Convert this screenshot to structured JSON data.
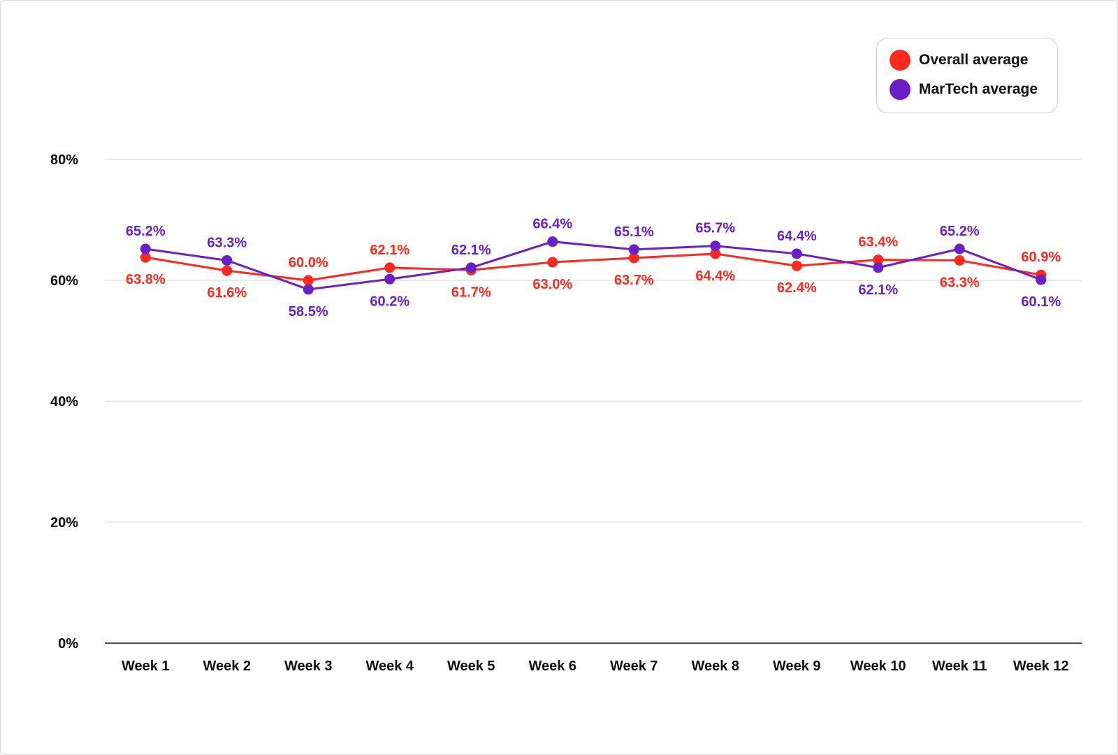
{
  "chart_data": {
    "type": "line",
    "title": "",
    "xlabel": "",
    "ylabel": "",
    "categories": [
      "Week 1",
      "Week 2",
      "Week 3",
      "Week 4",
      "Week 5",
      "Week 6",
      "Week 7",
      "Week 8",
      "Week 9",
      "Week 10",
      "Week 11",
      "Week 12"
    ],
    "ylim": [
      0,
      80
    ],
    "yticks": [
      "0%",
      "20%",
      "40%",
      "60%",
      "80%"
    ],
    "ytick_values": [
      0,
      20,
      40,
      60,
      80
    ],
    "grid": true,
    "legend_position": "top-right",
    "series": [
      {
        "name": "Overall average",
        "color": "#ff2a1f",
        "values": [
          63.8,
          61.6,
          60.0,
          62.1,
          61.7,
          63.0,
          63.7,
          64.4,
          62.4,
          63.4,
          63.3,
          60.9
        ],
        "labels": [
          "63.8%",
          "61.6%",
          "60.0%",
          "62.1%",
          "61.7%",
          "63.0%",
          "63.7%",
          "64.4%",
          "62.4%",
          "63.4%",
          "63.3%",
          "60.9%"
        ],
        "label_side": [
          "below",
          "below",
          "above",
          "above",
          "below",
          "below",
          "below",
          "below",
          "below",
          "above",
          "below",
          "above"
        ]
      },
      {
        "name": "MarTech average",
        "color": "#6a1fc7",
        "values": [
          65.2,
          63.3,
          58.5,
          60.2,
          62.1,
          66.4,
          65.1,
          65.7,
          64.4,
          62.1,
          65.2,
          60.1
        ],
        "labels": [
          "65.2%",
          "63.3%",
          "58.5%",
          "60.2%",
          "62.1%",
          "66.4%",
          "65.1%",
          "65.7%",
          "64.4%",
          "62.1%",
          "65.2%",
          "60.1%"
        ],
        "label_side": [
          "above",
          "above",
          "below",
          "below",
          "above",
          "above",
          "above",
          "above",
          "above",
          "below",
          "above",
          "below"
        ]
      }
    ]
  }
}
